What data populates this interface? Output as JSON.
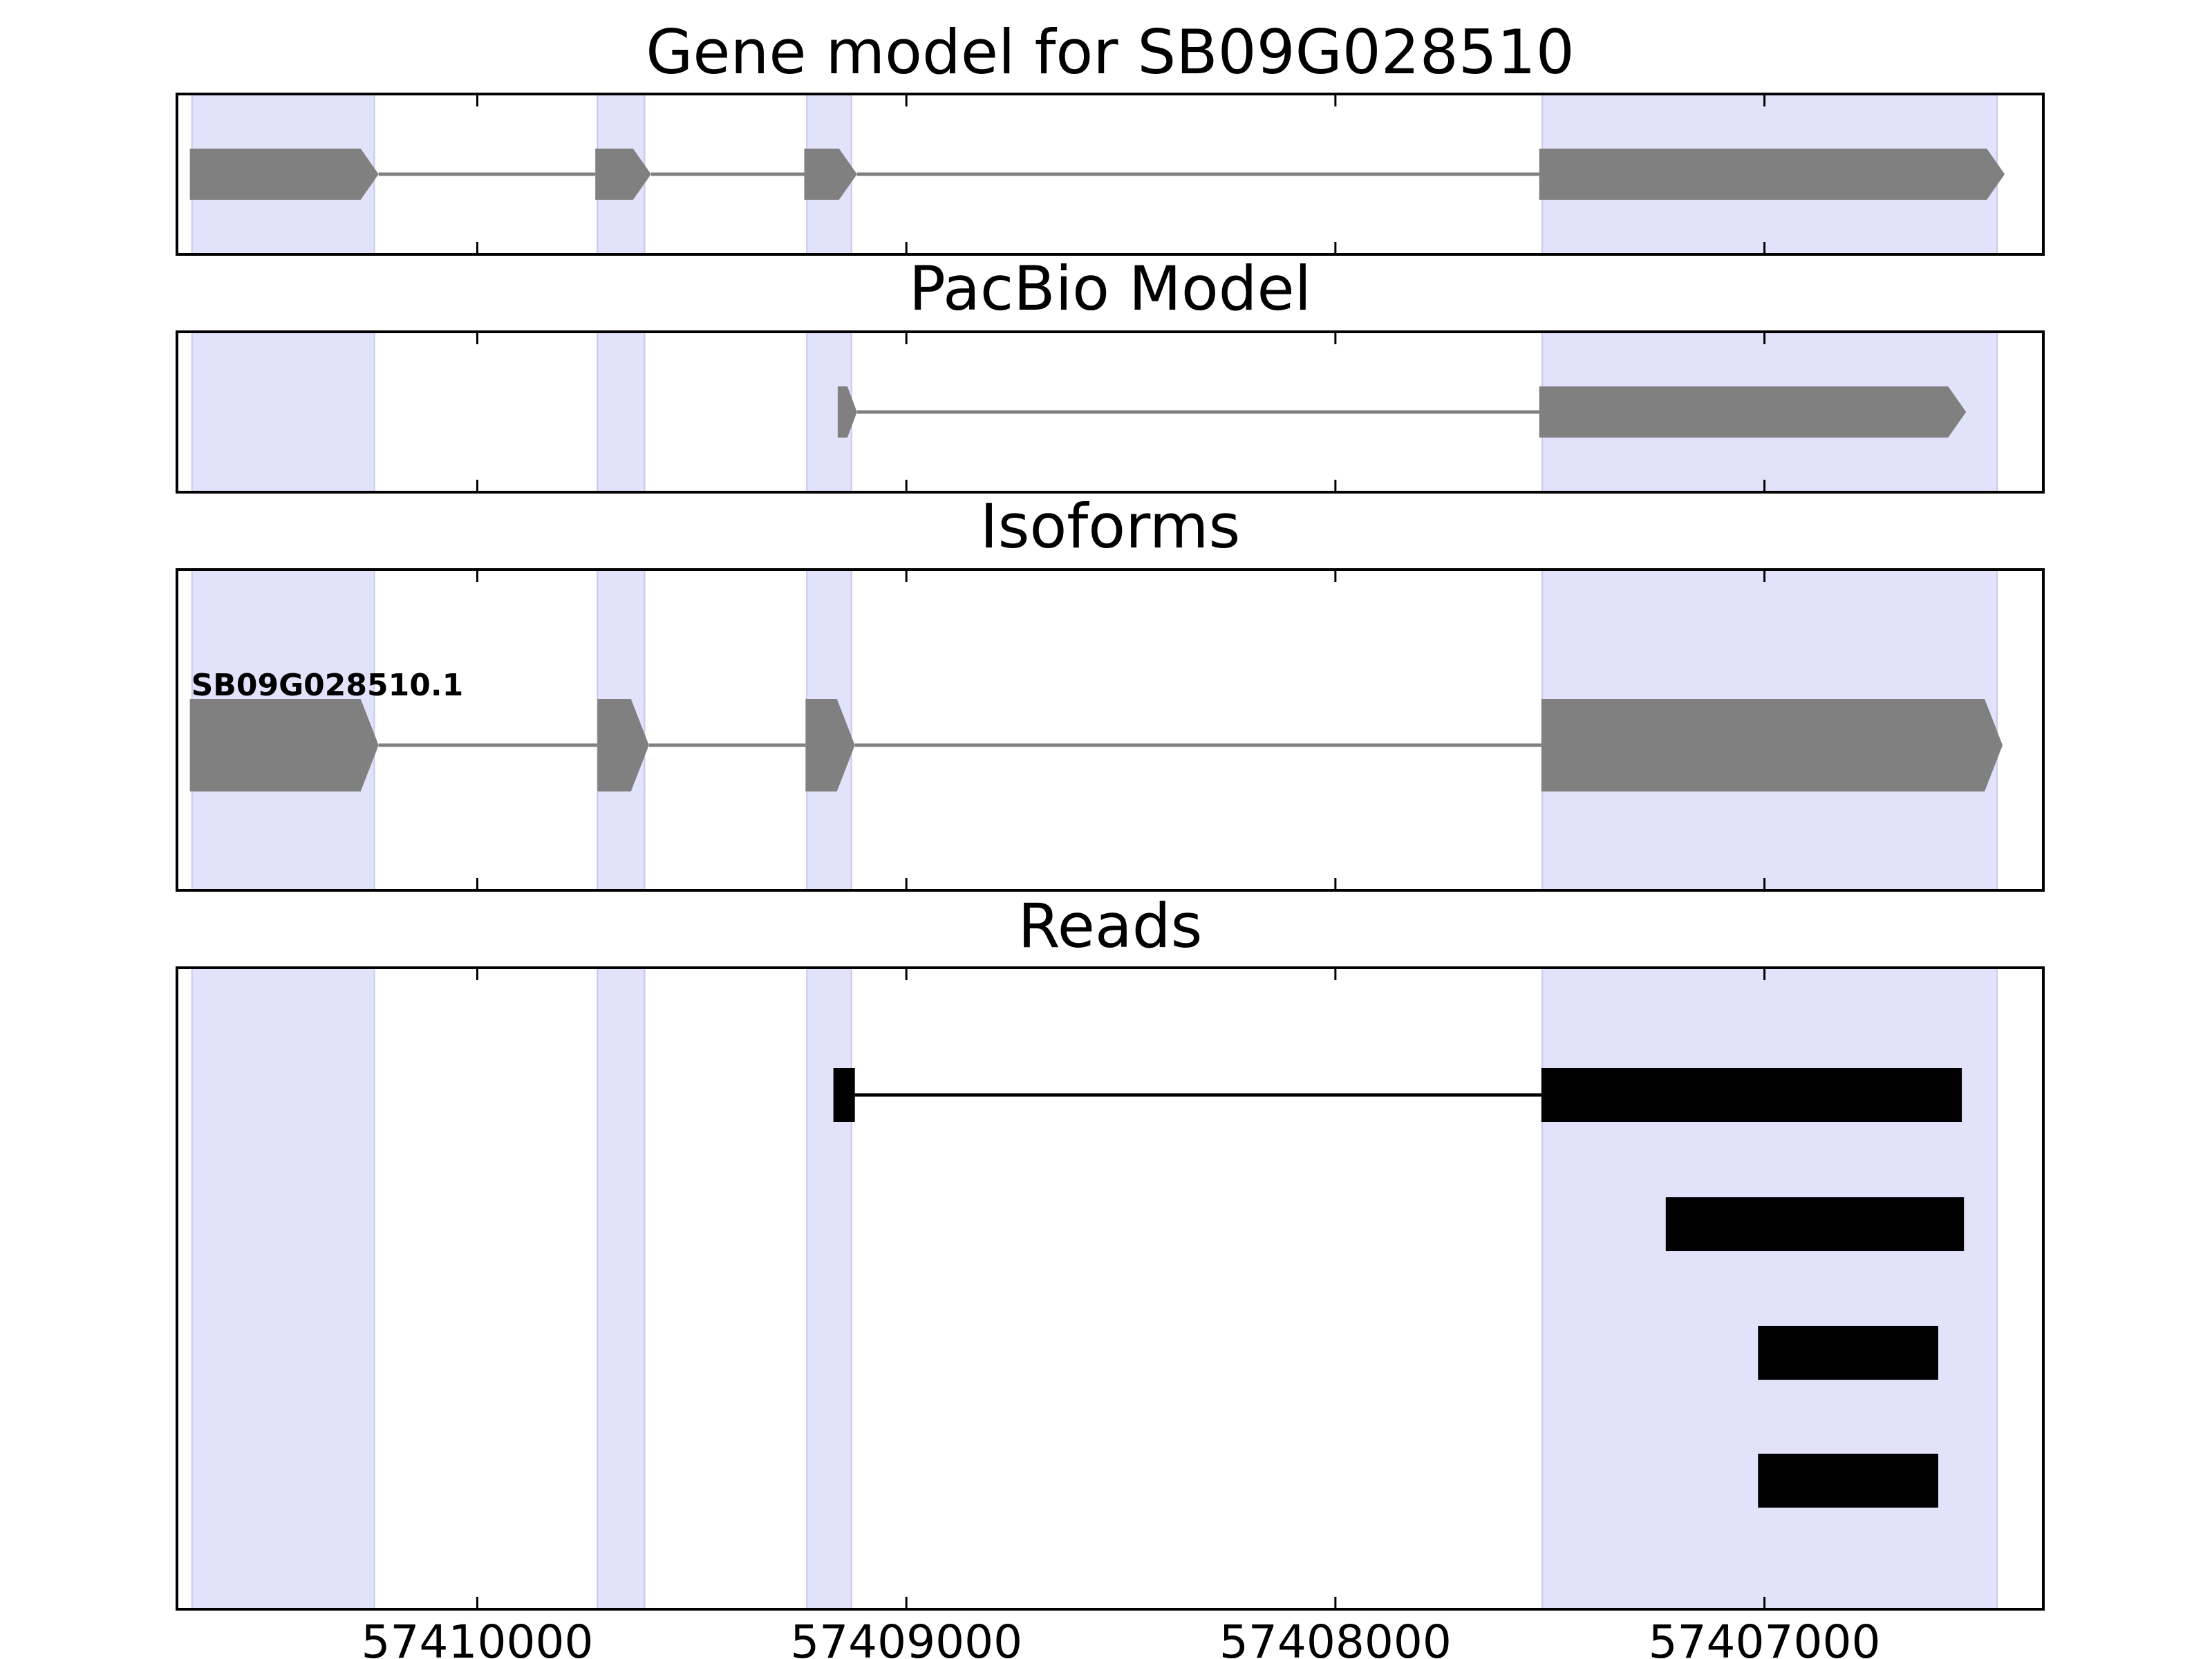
{
  "chart_data": {
    "type": "gene-track",
    "x_range": [
      57410700,
      57406350
    ],
    "x_ticks": [
      57410000,
      57409000,
      57408000,
      57407000
    ],
    "x_tick_labels": [
      "57410000",
      "57409000",
      "57408000",
      "57407000"
    ],
    "colors": {
      "exon_band": "#e2e2fb",
      "exon_band_edge": "#c8c8f0",
      "gene_feature": "#808080",
      "read": "#000000"
    },
    "exon_bands": [
      [
        57410665,
        57410240
      ],
      [
        57409720,
        57409610
      ],
      [
        57409232,
        57409128
      ],
      [
        57407518,
        57406458
      ]
    ],
    "panels": [
      {
        "id": "gene-model",
        "title": "Gene model for SB09G028510",
        "kind": "model",
        "tracks": [
          {
            "name": "",
            "exons": [
              [
                57410670,
                57410230
              ],
              [
                57409725,
                57409595
              ],
              [
                57409238,
                57409115
              ],
              [
                57407525,
                57406440
              ]
            ]
          }
        ]
      },
      {
        "id": "pacbio-model",
        "title": "PacBio Model",
        "kind": "model",
        "tracks": [
          {
            "name": "",
            "exons": [
              [
                57409160,
                57409115
              ],
              [
                57407525,
                57406530
              ]
            ]
          }
        ]
      },
      {
        "id": "isoforms",
        "title": "Isoforms",
        "kind": "model",
        "tracks": [
          {
            "name": "SB09G028510.1",
            "exons": [
              [
                57410670,
                57410230
              ],
              [
                57409720,
                57409600
              ],
              [
                57409235,
                57409120
              ],
              [
                57407520,
                57406445
              ]
            ]
          }
        ]
      },
      {
        "id": "reads",
        "title": "Reads",
        "kind": "reads",
        "tracks": [
          {
            "name": "",
            "exons": [
              [
                57409170,
                57409120
              ],
              [
                57407520,
                57406540
              ]
            ]
          },
          {
            "name": "",
            "exons": [
              [
                57407230,
                57406535
              ]
            ]
          },
          {
            "name": "",
            "exons": [
              [
                57407015,
                57406595
              ]
            ]
          },
          {
            "name": "",
            "exons": [
              [
                57407015,
                57406595
              ]
            ]
          }
        ]
      }
    ]
  }
}
